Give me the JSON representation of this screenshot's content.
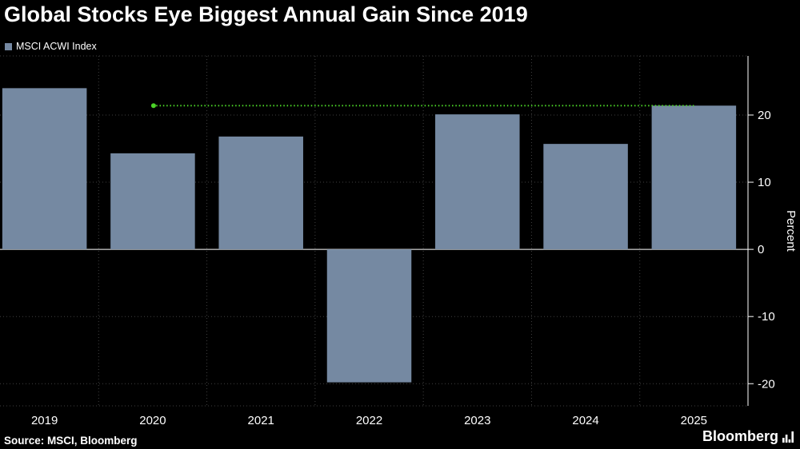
{
  "header": {
    "title": "Global Stocks Eye Biggest Annual Gain Since 2019"
  },
  "legend": {
    "label": "MSCI ACWI Index",
    "swatch_color": "#7589A2"
  },
  "chart_data": {
    "type": "bar",
    "series_name": "MSCI ACWI Index",
    "categories": [
      "2019",
      "2020",
      "2021",
      "2022",
      "2023",
      "2024",
      "2025"
    ],
    "values": [
      24.0,
      14.3,
      16.8,
      -19.8,
      20.1,
      15.7,
      21.4
    ],
    "ylabel": "Percent",
    "yticks": [
      -20,
      -10,
      0,
      10,
      20
    ],
    "ylim": [
      -23.3,
      28.8
    ],
    "grid": true,
    "legend_position": "top-left",
    "bar_color": "#7589A2",
    "gridline_color": "#414141",
    "axis_color": "#ffffff",
    "reference_line": {
      "value": 21.4,
      "color": "#4BD327",
      "style": "dotted",
      "x_start_category": "2020",
      "x_end_category": "2025"
    }
  },
  "footer": {
    "source": "Source: MSCI, Bloomberg",
    "brand": "Bloomberg"
  },
  "colors": {
    "background": "#000000",
    "text": "#ffffff"
  }
}
